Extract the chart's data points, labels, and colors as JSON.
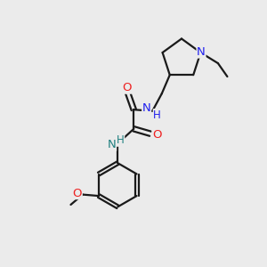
{
  "bg_color": "#ebebeb",
  "bond_color": "#1a1a1a",
  "N_color": "#2020ee",
  "N2_color": "#208080",
  "O_color": "#ee2020",
  "line_width": 1.6,
  "figsize": [
    3.0,
    3.0
  ],
  "dpi": 100,
  "xlim": [
    0,
    10
  ],
  "ylim": [
    0,
    10
  ]
}
